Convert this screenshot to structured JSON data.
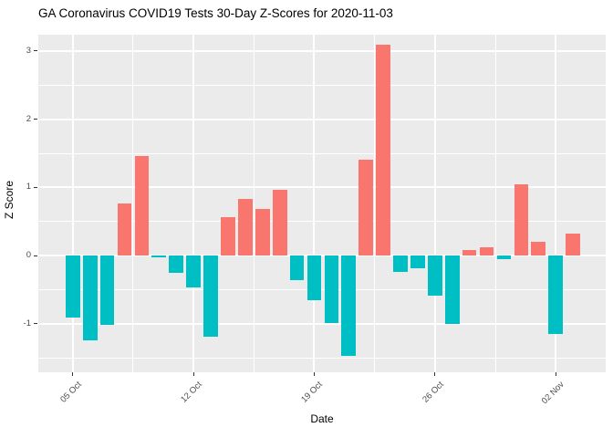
{
  "title": "GA Coronavirus COVID19 Tests 30-Day Z-Scores for 2020-11-03",
  "chart_data": {
    "type": "bar",
    "title": "GA Coronavirus COVID19 Tests 30-Day Z-Scores for 2020-11-03",
    "xlabel": "Date",
    "ylabel": "Z Score",
    "legend_position": "none",
    "grid": true,
    "dates": [
      "2020-10-05",
      "2020-10-06",
      "2020-10-07",
      "2020-10-08",
      "2020-10-09",
      "2020-10-10",
      "2020-10-11",
      "2020-10-12",
      "2020-10-13",
      "2020-10-14",
      "2020-10-15",
      "2020-10-16",
      "2020-10-17",
      "2020-10-18",
      "2020-10-19",
      "2020-10-20",
      "2020-10-21",
      "2020-10-22",
      "2020-10-23",
      "2020-10-24",
      "2020-10-25",
      "2020-10-26",
      "2020-10-27",
      "2020-10-28",
      "2020-10-29",
      "2020-10-30",
      "2020-10-31",
      "2020-11-01",
      "2020-11-02",
      "2020-11-03"
    ],
    "values": [
      -0.91,
      -1.24,
      -1.02,
      0.76,
      1.46,
      -0.03,
      -0.25,
      -0.47,
      -1.19,
      0.56,
      0.83,
      0.68,
      0.97,
      -0.36,
      -0.65,
      -0.99,
      -1.47,
      1.41,
      3.09,
      -0.24,
      -0.18,
      -0.58,
      -1.0,
      0.08,
      0.12,
      -0.05,
      1.05,
      0.2,
      -1.15,
      0.33
    ],
    "positive_color": "#F8766D",
    "negative_color": "#00BFC4",
    "panel_background": "#EBEBEB",
    "grid_color": "#FFFFFF",
    "axis_text_color": "#4D4D4D",
    "ylim": [
      -1.71,
      3.24
    ],
    "yticks_major": [
      3,
      2,
      1,
      0,
      -1
    ],
    "yticks_minor": [
      2.5,
      1.5,
      0.5,
      -0.5,
      -1.5
    ],
    "xlim_index": [
      -2.0,
      30.9
    ],
    "xticks_major": [
      {
        "index": 0,
        "label": "05 Oct"
      },
      {
        "index": 7,
        "label": "12 Oct"
      },
      {
        "index": 14,
        "label": "19 Oct"
      },
      {
        "index": 21,
        "label": "26 Oct"
      },
      {
        "index": 28,
        "label": "02 Nov"
      }
    ],
    "xticks_minor": [
      3.5,
      10.5,
      17.5,
      24.5
    ],
    "bar_width_fraction": 0.83
  }
}
